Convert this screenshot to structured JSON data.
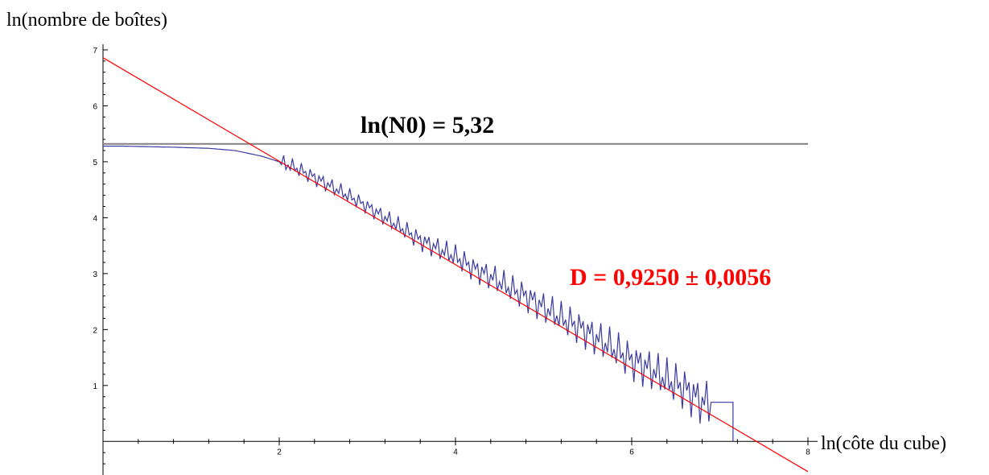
{
  "chart_data": {
    "type": "line",
    "xlabel": "ln(côte du cube)",
    "ylabel": "ln(nombre de boîtes)",
    "xlim": [
      0,
      8
    ],
    "ylim": [
      -0.6,
      7.1
    ],
    "x_ticks": [
      2,
      4,
      6,
      8
    ],
    "y_ticks": [
      1,
      2,
      3,
      4,
      5,
      6,
      7
    ],
    "grid": false,
    "annotations": [
      {
        "id": "n0",
        "text": "ln(N0) = 5,32"
      },
      {
        "id": "d",
        "text": "D = 0,9250 ± 0,0056"
      }
    ],
    "series": [
      {
        "id": "data",
        "color": "#3a3aa0",
        "x": [
          0,
          0.2,
          0.5,
          0.8,
          1.0,
          1.2,
          1.5,
          1.8,
          2.0,
          2.2,
          2.4,
          2.6,
          2.8,
          3.0,
          3.2,
          3.4,
          3.6,
          3.8,
          4.0,
          4.2,
          4.4,
          4.6,
          4.8,
          5.0,
          5.2,
          5.4,
          5.6,
          5.8,
          6.0,
          6.2,
          6.4,
          6.6,
          6.8,
          7.0,
          7.15,
          7.2
        ],
        "y": [
          5.28,
          5.28,
          5.27,
          5.26,
          5.25,
          5.24,
          5.2,
          5.1,
          5.0,
          4.88,
          4.72,
          4.55,
          4.38,
          4.2,
          4.0,
          3.8,
          3.6,
          3.45,
          3.3,
          3.1,
          2.95,
          2.75,
          2.6,
          2.4,
          2.2,
          2.05,
          1.85,
          1.65,
          1.45,
          1.3,
          1.1,
          0.95,
          0.7,
          0.7,
          0.7,
          0.0
        ],
        "noise_x_from": 2.0,
        "noise_amplitude": 0.15
      },
      {
        "id": "n0_line",
        "color": "#808080",
        "x": [
          0,
          8
        ],
        "y": [
          5.32,
          5.32
        ]
      },
      {
        "id": "fit",
        "color": "#ff0000",
        "x": [
          0,
          8
        ],
        "y": [
          6.86,
          -0.54
        ]
      }
    ]
  }
}
